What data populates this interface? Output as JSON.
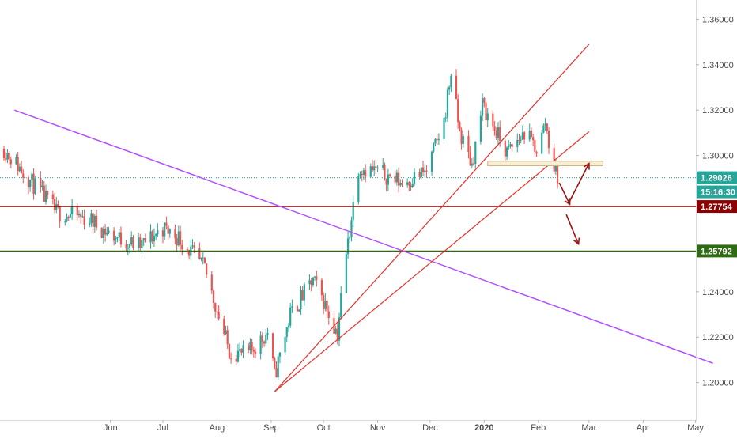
{
  "colors": {
    "up": "#26a69a",
    "down": "#ef5350",
    "trend_purple": "#b24dff",
    "trend_red": "#e8302a",
    "level_red": "#8b0000",
    "level_green": "#2e6b12",
    "current": "#26a69a",
    "zone_fill": "#f7eed3",
    "zone_stroke": "#c8b486",
    "arrow": "#a01010",
    "axis_text": "#4a4a4a",
    "grid": "#f0f3fa"
  },
  "chart_data": {
    "type": "candlestick",
    "title": "",
    "xlabel": "",
    "ylabel": "",
    "ylim": [
      1.1835,
      1.3685
    ],
    "x_ticks": [
      "Jun",
      "Jul",
      "Aug",
      "Sep",
      "Oct",
      "Nov",
      "Dec",
      "2020",
      "Feb",
      "Mar",
      "Apr",
      "May"
    ],
    "y_ticks": [
      "1.36000",
      "1.34000",
      "1.32000",
      "1.30000",
      "1.24000",
      "1.22000",
      "1.20000"
    ],
    "price_labels": {
      "current": "1.29026",
      "countdown": "15:16:30",
      "resistance": "1.27754",
      "support": "1.25792"
    },
    "levels": [
      {
        "name": "resistance",
        "value": 1.27754
      },
      {
        "name": "support",
        "value": 1.25792
      },
      {
        "name": "current",
        "value": 1.29026
      }
    ],
    "trendlines": [
      {
        "name": "purple-downtrend",
        "from": [
          "2019-04-07",
          1.32
        ],
        "to": [
          "2020-05-11",
          1.2085
        ]
      },
      {
        "name": "red-steep",
        "from": [
          "2019-09-03",
          1.196
        ],
        "to": [
          "2020-03-01",
          1.349
        ]
      },
      {
        "name": "red-shallow",
        "from": [
          "2019-09-03",
          1.196
        ],
        "to": [
          "2020-03-01",
          1.3105
        ]
      }
    ],
    "zone": {
      "from": "2020-01-03",
      "to": "2020-03-09",
      "low": 1.2955,
      "high": 1.2975
    },
    "arrows": [
      {
        "from": [
          "2020-02-13",
          1.288
        ],
        "to": [
          "2020-02-19",
          1.2785
        ]
      },
      {
        "from": [
          "2020-02-19",
          1.28
        ],
        "to": [
          "2020-03-01",
          1.2965
        ]
      },
      {
        "from": [
          "2020-02-17",
          1.274
        ],
        "to": [
          "2020-02-24",
          1.261
        ]
      }
    ],
    "anchors": [
      [
        "2019-04-01",
        1.303
      ],
      [
        "2019-04-15",
        1.29
      ],
      [
        "2019-05-01",
        1.275
      ],
      [
        "2019-05-20",
        1.272
      ],
      [
        "2019-06-01",
        1.265
      ],
      [
        "2019-06-18",
        1.26
      ],
      [
        "2019-07-01",
        1.268
      ],
      [
        "2019-07-10",
        1.264
      ],
      [
        "2019-07-25",
        1.25
      ],
      [
        "2019-08-08",
        1.214
      ],
      [
        "2019-08-18",
        1.212
      ],
      [
        "2019-08-30",
        1.222
      ],
      [
        "2019-09-03",
        1.203
      ],
      [
        "2019-09-12",
        1.23
      ],
      [
        "2019-09-25",
        1.245
      ],
      [
        "2019-10-01",
        1.236
      ],
      [
        "2019-10-09",
        1.2215
      ],
      [
        "2019-10-12",
        1.245
      ],
      [
        "2019-10-21",
        1.295
      ],
      [
        "2019-11-01",
        1.293
      ],
      [
        "2019-11-15",
        1.288
      ],
      [
        "2019-11-29",
        1.293
      ],
      [
        "2019-12-09",
        1.315
      ],
      [
        "2019-12-13",
        1.337
      ],
      [
        "2019-12-18",
        1.31
      ],
      [
        "2019-12-25",
        1.296
      ],
      [
        "2019-12-31",
        1.322
      ],
      [
        "2020-01-06",
        1.313
      ],
      [
        "2020-01-14",
        1.301
      ],
      [
        "2020-01-24",
        1.31
      ],
      [
        "2020-02-01",
        1.302
      ],
      [
        "2020-02-05",
        1.315
      ],
      [
        "2020-02-09",
        1.297
      ],
      [
        "2020-02-12",
        1.2905
      ]
    ]
  }
}
